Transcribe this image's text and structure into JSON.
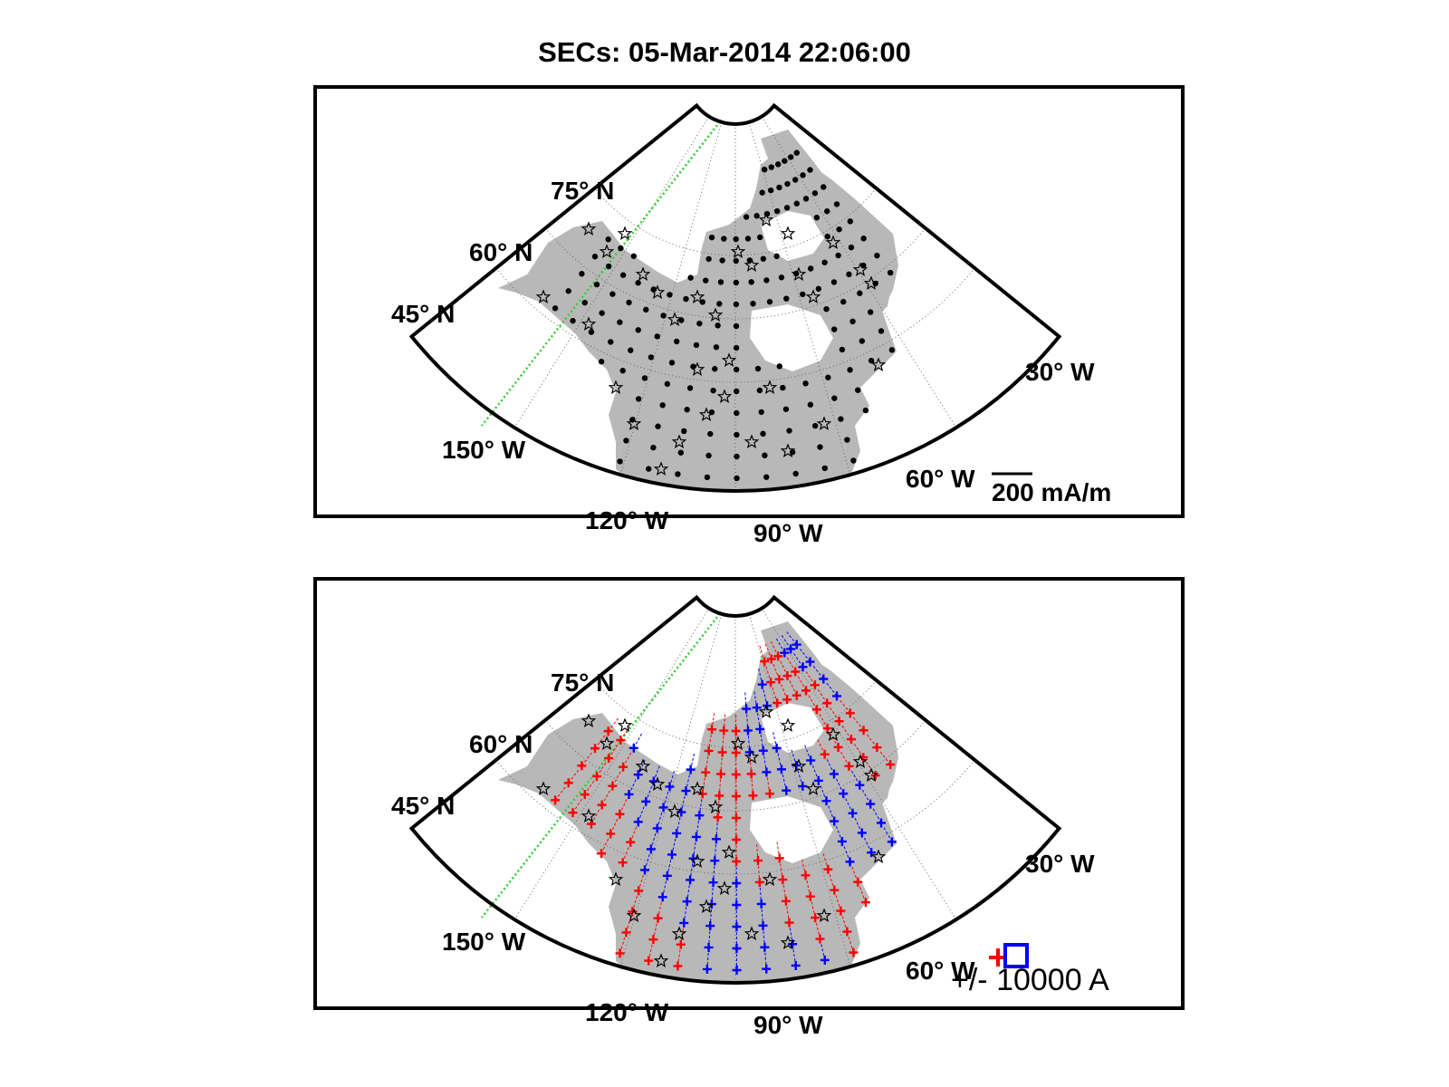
{
  "title": "SECs: 05-Mar-2014 22:06:00",
  "map": {
    "lat_labels": [
      "75",
      "60",
      "45"
    ],
    "lat_suffix": "N",
    "lon_labels": [
      "150",
      "120",
      "90",
      "60",
      "30"
    ],
    "lon_suffix": "W",
    "degree_symbol": "°"
  },
  "panels": {
    "top": {
      "name": "equivalent-current-vectors",
      "scale_label": "200 mA/m"
    },
    "bottom": {
      "name": "current-amplitudes",
      "scale_label": "+/- 10000 A"
    }
  },
  "colors": {
    "land": "#b8b8b8",
    "positive": "#ff0000",
    "negative": "#0000ff",
    "terminator": "#33cc33",
    "station": "#000000"
  },
  "icons": {
    "station": "star-outline-icon",
    "vector": "dot-icon",
    "positive_current": "plus-icon",
    "negative_current": "square-icon"
  }
}
